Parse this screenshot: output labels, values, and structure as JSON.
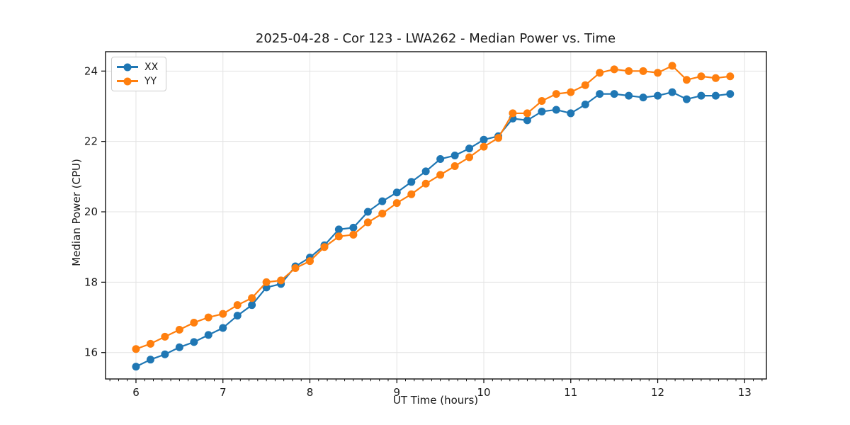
{
  "figure": {
    "background": "#ffffff"
  },
  "chart_data": {
    "type": "line",
    "title": "2025-04-28 - Cor 123 - LWA262 - Median Power vs. Time",
    "xlabel": "UT Time (hours)",
    "ylabel": "Median Power (CPU)",
    "xlim": [
      5.65,
      13.25
    ],
    "ylim": [
      15.25,
      24.55
    ],
    "x_ticks": [
      6,
      7,
      8,
      9,
      10,
      11,
      12,
      13
    ],
    "y_ticks": [
      16,
      18,
      20,
      22,
      24
    ],
    "x_minor_tick_step": 0.1,
    "grid": true,
    "grid_color": "#e3e3e3",
    "spine_color": "#000000",
    "legend_position": "upper-left",
    "x": [
      6.0,
      6.167,
      6.333,
      6.5,
      6.667,
      6.833,
      7.0,
      7.167,
      7.333,
      7.5,
      7.667,
      7.833,
      8.0,
      8.167,
      8.333,
      8.5,
      8.667,
      8.833,
      9.0,
      9.167,
      9.333,
      9.5,
      9.667,
      9.833,
      10.0,
      10.167,
      10.333,
      10.5,
      10.667,
      10.833,
      11.0,
      11.167,
      11.333,
      11.5,
      11.667,
      11.833,
      12.0,
      12.167,
      12.333,
      12.5,
      12.667,
      12.833
    ],
    "series": [
      {
        "name": "XX",
        "color": "#1f77b4",
        "values": [
          15.6,
          15.8,
          15.95,
          16.15,
          16.3,
          16.5,
          16.7,
          17.05,
          17.35,
          17.85,
          17.95,
          18.45,
          18.7,
          19.05,
          19.5,
          19.55,
          20.0,
          20.3,
          20.55,
          20.85,
          21.15,
          21.5,
          21.6,
          21.8,
          22.05,
          22.15,
          22.65,
          22.6,
          22.85,
          22.9,
          22.8,
          23.05,
          23.35,
          23.35,
          23.3,
          23.25,
          23.3,
          23.4,
          23.2,
          23.3,
          23.3,
          23.35
        ]
      },
      {
        "name": "YY",
        "color": "#ff7f0e",
        "values": [
          16.1,
          16.25,
          16.45,
          16.65,
          16.85,
          17.0,
          17.1,
          17.35,
          17.55,
          18.0,
          18.05,
          18.4,
          18.6,
          19.0,
          19.3,
          19.35,
          19.7,
          19.95,
          20.25,
          20.5,
          20.8,
          21.05,
          21.3,
          21.55,
          21.85,
          22.1,
          22.8,
          22.8,
          23.15,
          23.35,
          23.4,
          23.6,
          23.95,
          24.05,
          24.0,
          24.0,
          23.95,
          24.15,
          23.75,
          23.85,
          23.8,
          23.85
        ]
      }
    ]
  }
}
